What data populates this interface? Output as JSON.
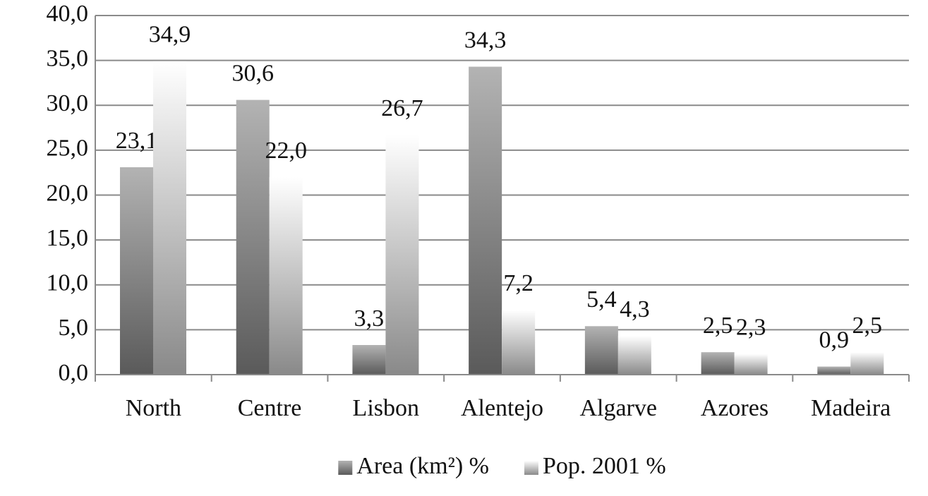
{
  "chart_data": {
    "type": "bar",
    "categories": [
      "North",
      "Centre",
      "Lisbon",
      "Alentejo",
      "Algarve",
      "Azores",
      "Madeira"
    ],
    "series": [
      {
        "name": "Area (km²) %",
        "color": "#8a8a8a",
        "values": [
          23.1,
          30.6,
          3.3,
          34.3,
          5.4,
          2.5,
          0.9
        ],
        "value_labels": [
          "23,1",
          "30,6",
          "3,3",
          "34,3",
          "5,4",
          "2,5",
          "0,9"
        ]
      },
      {
        "name": "Pop. 2001 %",
        "color": "#d2d2d2",
        "values": [
          34.9,
          22.0,
          26.7,
          7.2,
          4.3,
          2.3,
          2.5
        ],
        "value_labels": [
          "34,9",
          "22,0",
          "26,7",
          "7,2",
          "4,3",
          "2,3",
          "2,5"
        ]
      }
    ],
    "ylim": [
      0,
      40
    ],
    "yticks": [
      {
        "value": 0,
        "label": "0,0"
      },
      {
        "value": 5,
        "label": "5,0"
      },
      {
        "value": 10,
        "label": "10,0"
      },
      {
        "value": 15,
        "label": "15,0"
      },
      {
        "value": 20,
        "label": "20,0"
      },
      {
        "value": 25,
        "label": "25,0"
      },
      {
        "value": 30,
        "label": "30,0"
      },
      {
        "value": 35,
        "label": "35,0"
      },
      {
        "value": 40,
        "label": "40,0"
      }
    ],
    "grid": true,
    "legend": "bottom"
  }
}
